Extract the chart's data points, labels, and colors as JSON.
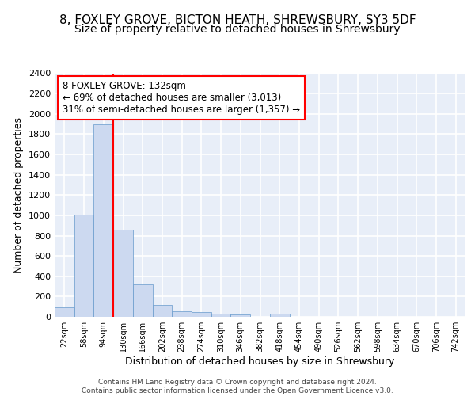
{
  "title1": "8, FOXLEY GROVE, BICTON HEATH, SHREWSBURY, SY3 5DF",
  "title2": "Size of property relative to detached houses in Shrewsbury",
  "xlabel": "Distribution of detached houses by size in Shrewsbury",
  "ylabel": "Number of detached properties",
  "categories": [
    "22sqm",
    "58sqm",
    "94sqm",
    "130sqm",
    "166sqm",
    "202sqm",
    "238sqm",
    "274sqm",
    "310sqm",
    "346sqm",
    "382sqm",
    "418sqm",
    "454sqm",
    "490sqm",
    "526sqm",
    "562sqm",
    "598sqm",
    "634sqm",
    "670sqm",
    "706sqm",
    "742sqm"
  ],
  "values": [
    90,
    1010,
    1900,
    860,
    320,
    115,
    55,
    50,
    35,
    20,
    0,
    35,
    0,
    0,
    0,
    0,
    0,
    0,
    0,
    0,
    0
  ],
  "bar_color": "#ccd9f0",
  "bar_edge_color": "#6699cc",
  "annotation_text": "8 FOXLEY GROVE: 132sqm\n← 69% of detached houses are smaller (3,013)\n31% of semi-detached houses are larger (1,357) →",
  "annotation_box_color": "white",
  "annotation_box_edge": "red",
  "ylim": [
    0,
    2400
  ],
  "yticks": [
    0,
    200,
    400,
    600,
    800,
    1000,
    1200,
    1400,
    1600,
    1800,
    2000,
    2200,
    2400
  ],
  "background_color": "#e8eef8",
  "grid_color": "white",
  "footer_text": "Contains HM Land Registry data © Crown copyright and database right 2024.\nContains public sector information licensed under the Open Government Licence v3.0.",
  "title1_fontsize": 11,
  "title2_fontsize": 10,
  "xlabel_fontsize": 9,
  "ylabel_fontsize": 9,
  "tick_fontsize": 8,
  "annot_fontsize": 8.5
}
